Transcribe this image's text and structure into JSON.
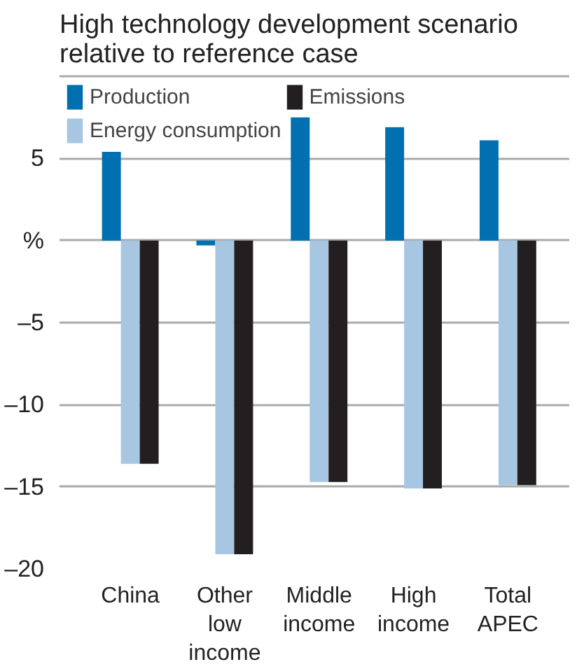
{
  "chart_data": {
    "type": "bar",
    "title": "High technology development scenario\nrelative to reference case",
    "categories": [
      "China",
      "Other\nlow\nincome",
      "Middle\nincome",
      "High\nincome",
      "Total\nAPEC"
    ],
    "series": [
      {
        "name": "Production",
        "color": "#0070b0",
        "values": [
          5.4,
          -0.3,
          7.5,
          6.9,
          6.1
        ]
      },
      {
        "name": "Energy consumption",
        "color": "#a6c6e2",
        "values": [
          -13.6,
          -19.1,
          -14.7,
          -15.1,
          -14.9
        ]
      },
      {
        "name": "Emissions",
        "color": "#231f20",
        "values": [
          -13.6,
          -19.1,
          -14.7,
          -15.1,
          -14.9
        ]
      }
    ],
    "ylim": [
      -20,
      10
    ],
    "yticks": [
      5,
      {
        "value": 0,
        "label": "%"
      },
      {
        "value": -5,
        "label": "–5"
      },
      {
        "value": -10,
        "label": "–10"
      },
      {
        "value": -15,
        "label": "–15"
      },
      {
        "value": -20,
        "label": "–20"
      }
    ],
    "grid": "y",
    "legend": "top left"
  }
}
